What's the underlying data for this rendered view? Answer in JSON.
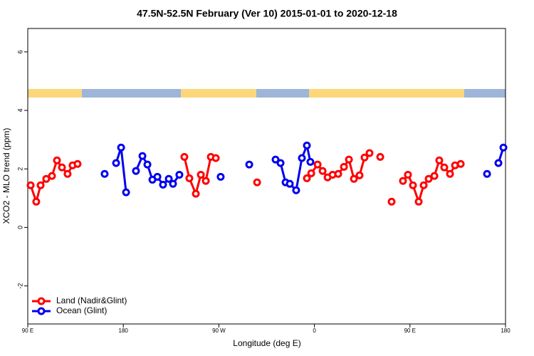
{
  "chart_data": {
    "type": "line",
    "title": "47.5N-52.5N February (Ver 10)   2015-01-01 to 2020-12-18",
    "x_label": "Longitude (deg E)",
    "y_label": "XCO2 - MLO trend (ppm)",
    "xlim": [
      90,
      540
    ],
    "xticks": [
      {
        "value": 90,
        "label": "90 E"
      },
      180,
      {
        "value": 270,
        "label": "90 W"
      },
      {
        "value": 360,
        "label": "0"
      },
      {
        "value": 450,
        "label": "90 E"
      },
      {
        "value": 540,
        "label": "180"
      }
    ],
    "ylim": [
      -3.3,
      6.8
    ],
    "yticks": [
      -2,
      0,
      2,
      4,
      6
    ],
    "legend": "bottom-left",
    "series": [
      {
        "name": "Land (Nadir&Glint)",
        "color": "#ff0000",
        "x": [
          92.7,
          98.0,
          102.1,
          107.4,
          112.8,
          117.5,
          122.2,
          127.5,
          132.2,
          136.9,
          null,
          237.5,
          242.2,
          248.3,
          253.0,
          257.7,
          262.4,
          267.1,
          null,
          306.0,
          null,
          352.9,
          357.0,
          363.0,
          367.7,
          372.4,
          377.1,
          382.4,
          387.8,
          392.5,
          397.2,
          402.5,
          407.2,
          411.9,
          null,
          422.0,
          null,
          432.7,
          null,
          443.4,
          448.1,
          452.8,
          458.2,
          462.9,
          467.6,
          473.0,
          477.6,
          482.3,
          487.7,
          492.4,
          497.8
        ],
        "values": [
          1.44,
          0.88,
          1.44,
          1.66,
          1.76,
          2.29,
          2.05,
          1.83,
          2.12,
          2.17,
          null,
          2.41,
          1.68,
          1.15,
          1.8,
          1.59,
          2.41,
          2.37,
          null,
          1.54,
          null,
          1.68,
          1.85,
          2.15,
          1.93,
          1.71,
          1.8,
          1.83,
          2.07,
          2.32,
          1.66,
          1.78,
          2.39,
          2.54,
          null,
          2.41,
          null,
          0.88,
          null,
          1.59,
          1.8,
          1.44,
          0.88,
          1.44,
          1.66,
          1.76,
          2.29,
          2.05,
          1.83,
          2.12,
          2.17
        ]
      },
      {
        "name": "Ocean (Glint)",
        "color": "#0000ee",
        "x": [
          162.4,
          null,
          173.2,
          177.9,
          182.6,
          null,
          191.9,
          198.0,
          202.7,
          207.4,
          212.1,
          217.4,
          222.8,
          226.8,
          232.8,
          null,
          271.7,
          null,
          298.6,
          null,
          323.4,
          328.1,
          332.8,
          336.8,
          342.8,
          348.2,
          352.9,
          356.2,
          null,
          522.6,
          null,
          533.3,
          538.0
        ],
        "values": [
          1.83,
          null,
          2.2,
          2.73,
          1.2,
          null,
          1.93,
          2.44,
          2.15,
          1.63,
          1.73,
          1.46,
          1.66,
          1.49,
          1.8,
          null,
          1.73,
          null,
          2.15,
          null,
          2.32,
          2.2,
          1.54,
          1.49,
          1.27,
          2.37,
          2.8,
          2.24,
          null,
          1.83,
          null,
          2.2,
          2.73
        ]
      }
    ]
  }
}
